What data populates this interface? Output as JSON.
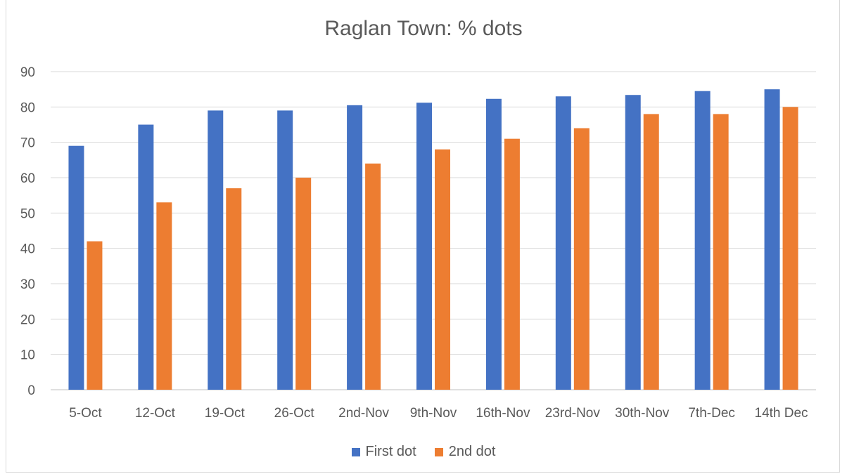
{
  "chart_data": {
    "type": "bar",
    "title": "Raglan Town: % dots",
    "xlabel": "",
    "ylabel": "",
    "ylim": [
      0,
      90
    ],
    "yticks": [
      0,
      10,
      20,
      30,
      40,
      50,
      60,
      70,
      80,
      90
    ],
    "grid": true,
    "legend_position": "bottom",
    "categories": [
      "5-Oct",
      "12-Oct",
      "19-Oct",
      "26-Oct",
      "2nd-Nov",
      "9th-Nov",
      "16th-Nov",
      "23rd-Nov",
      "30th-Nov",
      "7th-Dec",
      "14th Dec"
    ],
    "series": [
      {
        "name": "First dot",
        "color": "#4472c4",
        "values": [
          69,
          75,
          79,
          79,
          80.5,
          81.2,
          82.3,
          83,
          83.4,
          84.5,
          85
        ]
      },
      {
        "name": "2nd dot",
        "color": "#ed7d31",
        "values": [
          42,
          53,
          57,
          60,
          64,
          68,
          71,
          74,
          78,
          78,
          80
        ]
      }
    ]
  }
}
